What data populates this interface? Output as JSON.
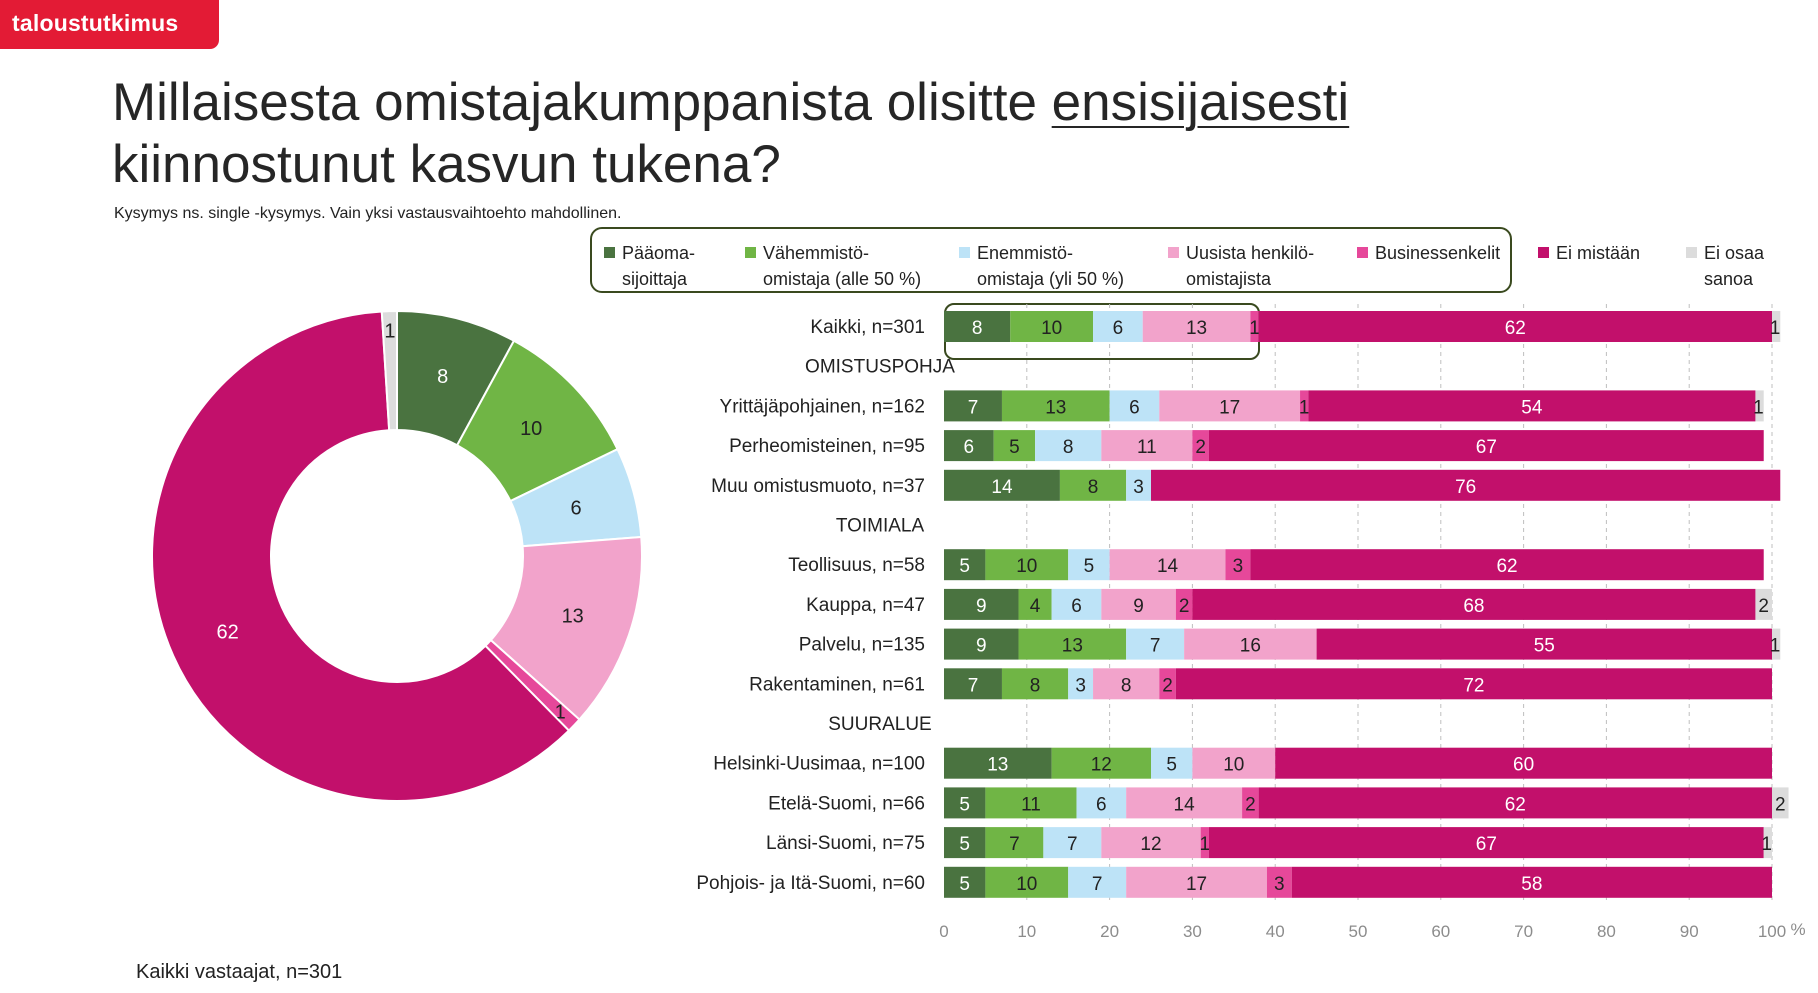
{
  "brand": {
    "logo_text": "taloustutkimus"
  },
  "header": {
    "title_part1": "Millaisesta omistajakumppanista olisitte ",
    "title_underlined": "ensisijaisesti",
    "title_part2": "kiinnostunut kasvun tukena?",
    "subtitle": "Kysymys ns. single -kysymys. Vain yksi vastausvaihtoehto mahdollinen."
  },
  "footer": {
    "note": "Kaikki vastaajat, n=301"
  },
  "colors": {
    "paaoma": "#4a7340",
    "vahemmisto": "#70b545",
    "enemmisto": "#bde3f7",
    "uusista": "#f2a3cb",
    "business": "#e6489a",
    "ei_mistaan": "#c2106b",
    "ei_osaa": "#dcdcdc",
    "logo": "#e31b35"
  },
  "legend": [
    {
      "key": "paaoma",
      "label": "Pääoma-\nsijoittaja"
    },
    {
      "key": "vahemmisto",
      "label": "Vähemmistö-\nomistaja (alle 50 %)"
    },
    {
      "key": "enemmisto",
      "label": "Enemmistö-\nomistaja (yli 50 %)"
    },
    {
      "key": "uusista",
      "label": "Uusista henkilö-\nomistajista"
    },
    {
      "key": "business",
      "label": "Businessenkelit"
    },
    {
      "key": "ei_mistaan",
      "label": "Ei mistään"
    },
    {
      "key": "ei_osaa",
      "label": "Ei osaa\nsanoa"
    }
  ],
  "chart_data": [
    {
      "type": "pie",
      "variant": "donut",
      "labels": [
        "Pääoma-sijoittaja",
        "Vähemmistö-omistaja (alle 50 %)",
        "Enemmistö-omistaja (yli 50 %)",
        "Uusista henkilö-omistajista",
        "Businessenkelit",
        "Ei mistään",
        "Ei osaa sanoa"
      ],
      "keys": [
        "paaoma",
        "vahemmisto",
        "enemmisto",
        "uusista",
        "business",
        "ei_mistaan",
        "ei_osaa"
      ],
      "values": [
        8,
        10,
        6,
        13,
        1,
        62,
        1
      ],
      "start": "top, clockwise"
    },
    {
      "type": "bar",
      "orientation": "horizontal",
      "stacked": true,
      "series_keys": [
        "paaoma",
        "vahemmisto",
        "enemmisto",
        "uusista",
        "business",
        "ei_mistaan",
        "ei_osaa"
      ],
      "series_names": [
        "Pääoma-sijoittaja",
        "Vähemmistö-omistaja (alle 50 %)",
        "Enemmistö-omistaja (yli 50 %)",
        "Uusista henkilö-omistajista",
        "Businessenkelit",
        "Ei mistään",
        "Ei osaa sanoa"
      ],
      "rows": [
        {
          "label": "Kaikki, n=301",
          "values": [
            8,
            10,
            6,
            13,
            1,
            62,
            1
          ]
        },
        {
          "label": "OMISTUSPOHJA",
          "header": true
        },
        {
          "label": "Yrittäjäpohjainen, n=162",
          "values": [
            7,
            13,
            6,
            17,
            1,
            54,
            1
          ]
        },
        {
          "label": "Perheomisteinen, n=95",
          "values": [
            6,
            5,
            8,
            11,
            2,
            67,
            0
          ]
        },
        {
          "label": "Muu omistusmuoto, n=37",
          "values": [
            14,
            8,
            3,
            0,
            0,
            76,
            0
          ]
        },
        {
          "label": "TOIMIALA",
          "header": true
        },
        {
          "label": "Teollisuus, n=58",
          "values": [
            5,
            10,
            5,
            14,
            3,
            62,
            0
          ]
        },
        {
          "label": "Kauppa, n=47",
          "values": [
            9,
            4,
            6,
            9,
            2,
            68,
            2
          ]
        },
        {
          "label": "Palvelu, n=135",
          "values": [
            9,
            13,
            7,
            16,
            0,
            55,
            1
          ]
        },
        {
          "label": "Rakentaminen, n=61",
          "values": [
            7,
            8,
            3,
            8,
            2,
            72,
            0
          ]
        },
        {
          "label": "SUURALUE",
          "header": true
        },
        {
          "label": "Helsinki-Uusimaa, n=100",
          "values": [
            13,
            12,
            5,
            10,
            0,
            60,
            0
          ]
        },
        {
          "label": "Etelä-Suomi, n=66",
          "values": [
            5,
            11,
            6,
            14,
            2,
            62,
            2
          ]
        },
        {
          "label": "Länsi-Suomi, n=75",
          "values": [
            5,
            7,
            7,
            12,
            1,
            67,
            1
          ]
        },
        {
          "label": "Pohjois- ja Itä-Suomi, n=60",
          "values": [
            5,
            10,
            7,
            17,
            3,
            58,
            0
          ]
        }
      ],
      "xlim": [
        0,
        100
      ],
      "xticks": [
        0,
        10,
        20,
        30,
        40,
        50,
        60,
        70,
        80,
        90,
        100
      ],
      "xunit": "%",
      "grid": "vertical dashed"
    }
  ]
}
